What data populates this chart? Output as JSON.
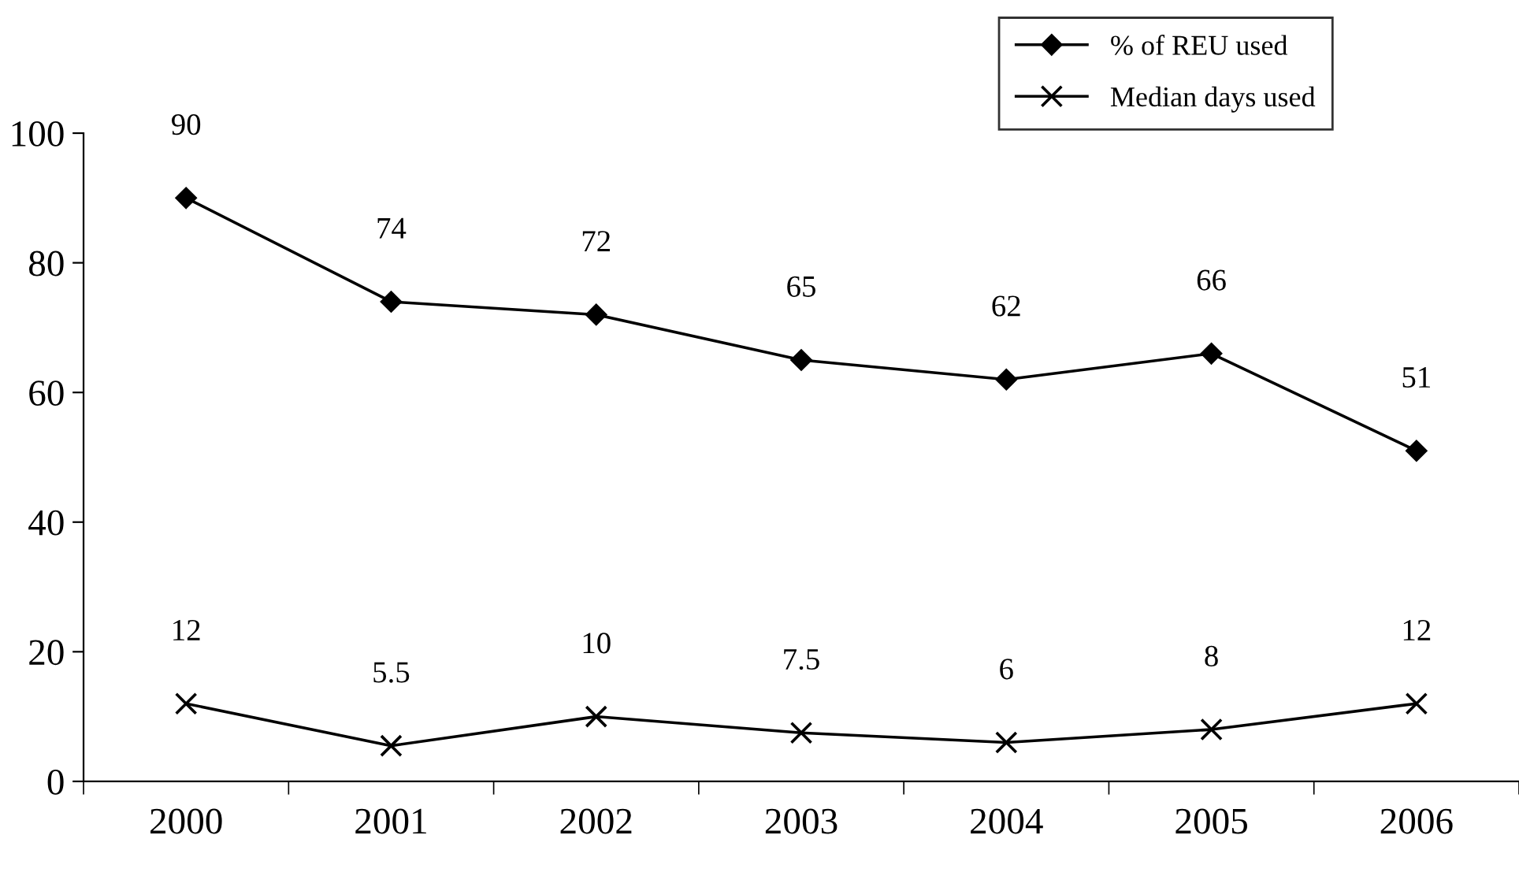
{
  "chart_data": {
    "type": "line",
    "categories": [
      "2000",
      "2001",
      "2002",
      "2003",
      "2004",
      "2005",
      "2006"
    ],
    "series": [
      {
        "name": "% of REU used",
        "color": "#000000",
        "marker": "diamond",
        "values": [
          90,
          74,
          72,
          65,
          62,
          66,
          51
        ]
      },
      {
        "name": "Median days used",
        "color": "#000000",
        "marker": "cross",
        "values": [
          12,
          5.5,
          10,
          7.5,
          6,
          8,
          12
        ]
      }
    ],
    "ylim": [
      0,
      100
    ],
    "yticks": [
      0,
      20,
      40,
      60,
      80,
      100
    ],
    "grid": false,
    "legend": "top right",
    "data_labels": true,
    "line_style": "solid"
  }
}
